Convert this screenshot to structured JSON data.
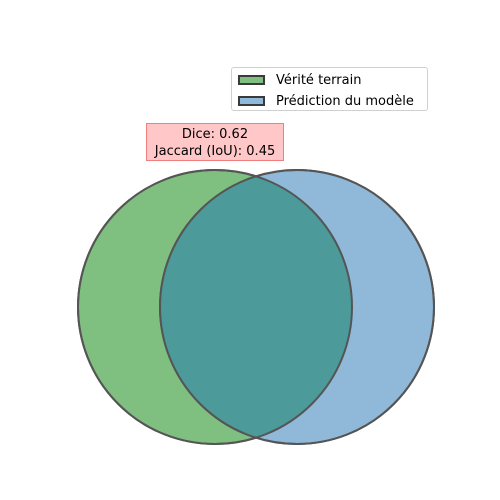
{
  "legend": {
    "items": [
      {
        "label": "Vérité terrain",
        "color": "#7fbf7f"
      },
      {
        "label": "Prédiction du modèle",
        "color": "#8fb8d9"
      }
    ]
  },
  "metrics": {
    "dice_text": "Dice: 0.62",
    "jaccard_text": "Jaccard (IoU): 0.45"
  },
  "venn": {
    "sets": [
      {
        "name": "ground_truth",
        "color": "#7fbf7f"
      },
      {
        "name": "prediction",
        "color": "#8fb8d9"
      }
    ],
    "intersection_color": "#4c9a9a",
    "edge_color": "#555555"
  }
}
